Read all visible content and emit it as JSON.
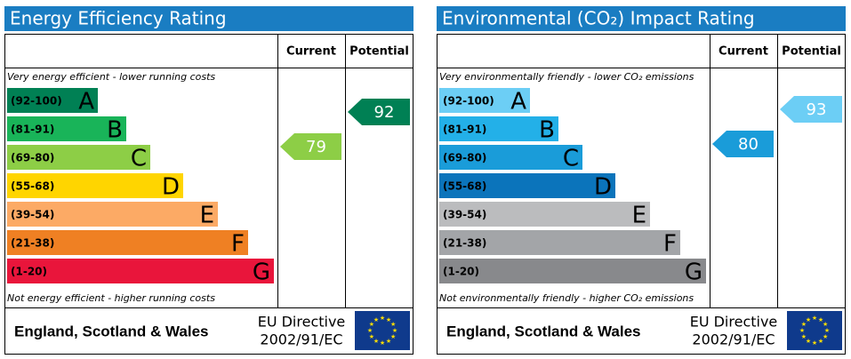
{
  "panels": [
    {
      "title": "Energy Efficiency Rating",
      "columns": [
        "Current",
        "Potential"
      ],
      "top_note": "Very energy efficient - lower running costs",
      "bottom_note": "Not energy efficient - higher running costs",
      "bands": [
        {
          "range": "(92-100)",
          "letter": "A",
          "color": "#008054"
        },
        {
          "range": "(81-91)",
          "letter": "B",
          "color": "#19b459"
        },
        {
          "range": "(69-80)",
          "letter": "C",
          "color": "#8dce46"
        },
        {
          "range": "(55-68)",
          "letter": "D",
          "color": "#ffd500"
        },
        {
          "range": "(39-54)",
          "letter": "E",
          "color": "#fcaa65"
        },
        {
          "range": "(21-38)",
          "letter": "F",
          "color": "#ef8023"
        },
        {
          "range": "(1-20)",
          "letter": "G",
          "color": "#e9153b"
        }
      ],
      "current": 79,
      "current_color": "#8dce46",
      "potential": 92,
      "potential_color": "#008054",
      "footer": {
        "region": "England, Scotland & Wales",
        "directive_line1": "EU Directive",
        "directive_line2": "2002/91/EC"
      }
    },
    {
      "title": "Environmental (CO₂) Impact Rating",
      "columns": [
        "Current",
        "Potential"
      ],
      "top_note": "Very environmentally friendly - lower CO₂ emissions",
      "bottom_note": "Not environmentally friendly - higher CO₂ emissions",
      "bands": [
        {
          "range": "(92-100)",
          "letter": "A",
          "color": "#6ccef5"
        },
        {
          "range": "(81-91)",
          "letter": "B",
          "color": "#23b0e8"
        },
        {
          "range": "(69-80)",
          "letter": "C",
          "color": "#1a9cd9"
        },
        {
          "range": "(55-68)",
          "letter": "D",
          "color": "#0b74bb"
        },
        {
          "range": "(39-54)",
          "letter": "E",
          "color": "#bbbcbe"
        },
        {
          "range": "(21-38)",
          "letter": "F",
          "color": "#a3a5a8"
        },
        {
          "range": "(1-20)",
          "letter": "G",
          "color": "#88898c"
        }
      ],
      "current": 80,
      "current_color": "#1a9cd9",
      "potential": 93,
      "potential_color": "#6ccef5",
      "footer": {
        "region": "England, Scotland & Wales",
        "directive_line1": "EU Directive",
        "directive_line2": "2002/91/EC"
      }
    }
  ]
}
